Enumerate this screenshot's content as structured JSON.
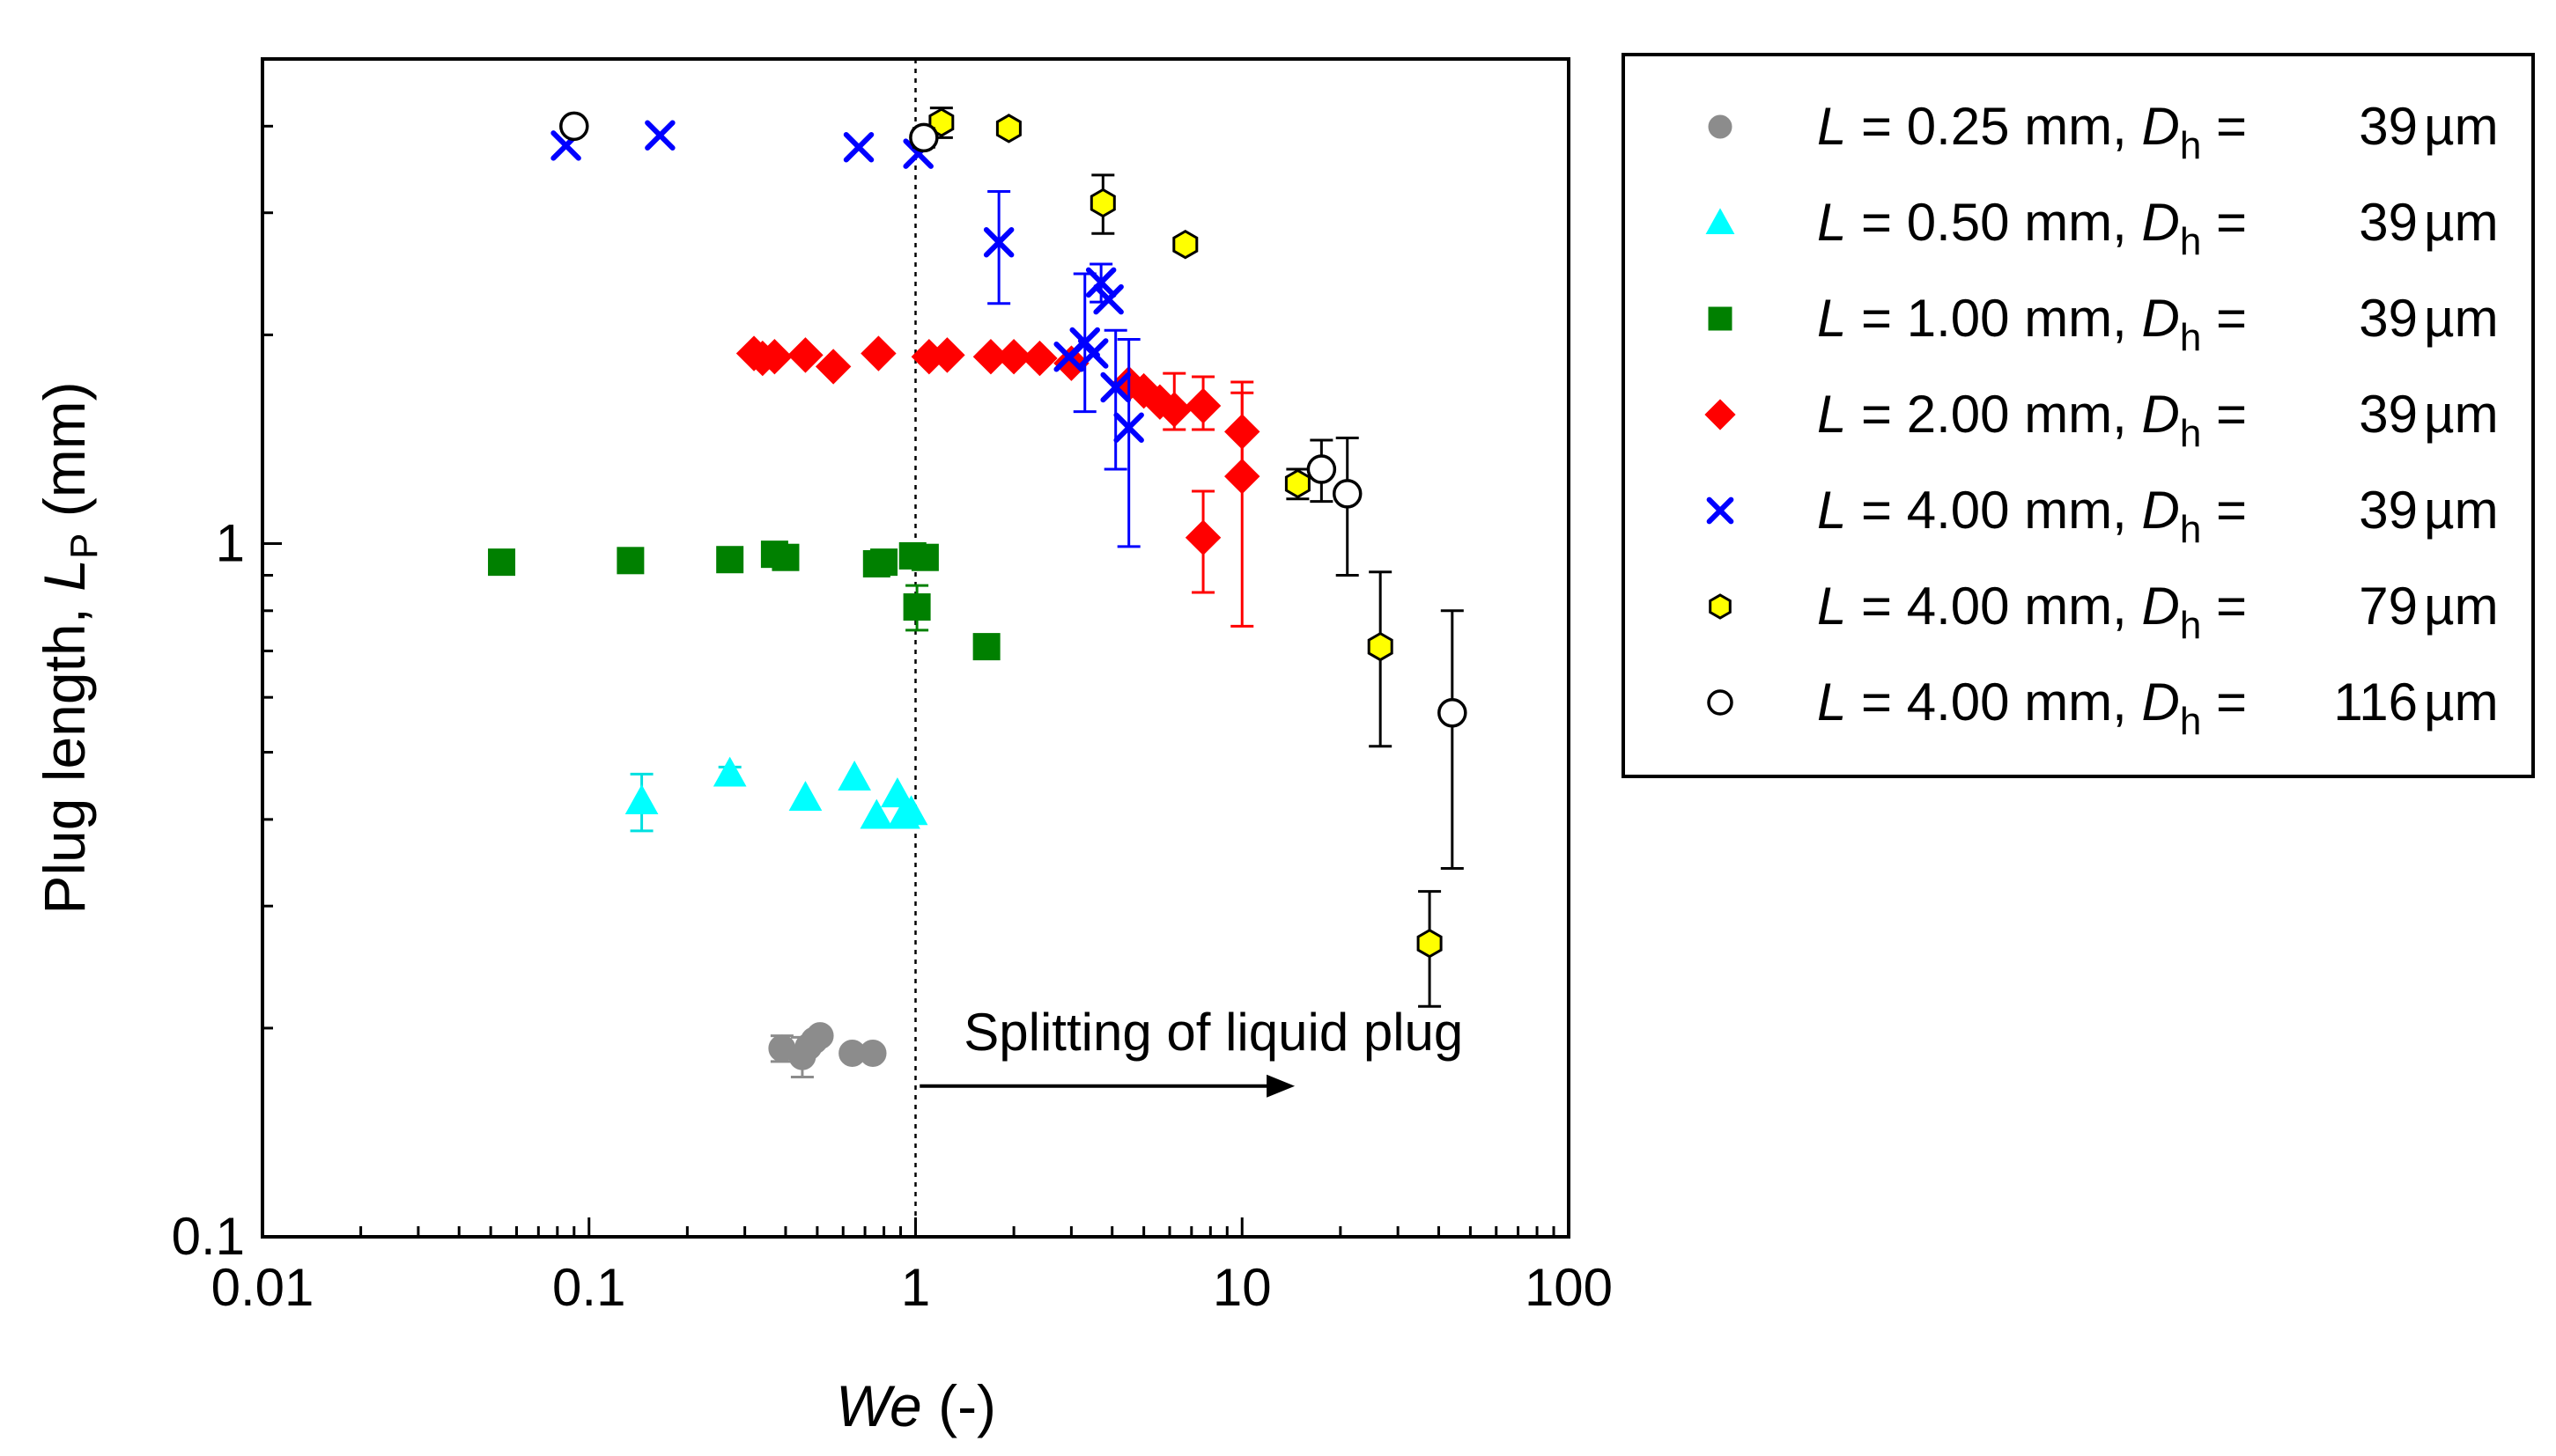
{
  "chart_data": {
    "type": "scatter",
    "title": "",
    "xlabel_italic": "We",
    "xlabel_rest": " (-)",
    "ylabel_prefix": "Plug length, ",
    "ylabel_var": "L",
    "ylabel_sub": "P",
    "ylabel_suffix": " (mm)",
    "xscale": "log",
    "yscale": "log",
    "xlim": [
      0.01,
      100
    ],
    "ylim": [
      0.1,
      5
    ],
    "xticks": [
      {
        "value": 0.01,
        "label": "0.01"
      },
      {
        "value": 0.1,
        "label": "0.1"
      },
      {
        "value": 1,
        "label": "1"
      },
      {
        "value": 10,
        "label": "10"
      },
      {
        "value": 100,
        "label": "100"
      }
    ],
    "yticks": [
      {
        "value": 0.1,
        "label": "0.1"
      },
      {
        "value": 1,
        "label": "1"
      }
    ],
    "grid": false,
    "legend_position": "outside-right-top",
    "reference_line": {
      "x": 1,
      "style": "dotted"
    },
    "annotation": {
      "text": "Splitting of liquid plug",
      "x": 2.6,
      "y": 0.197,
      "arrow_from_x": 1.03,
      "arrow_to_x": 14.5,
      "arrow_y": 0.165
    },
    "series": [
      {
        "name": "L = 0.25 mm, Dh = 39 µm",
        "L_label": "L",
        "eq1": " = 0.25 mm, ",
        "D_label": "D",
        "sub": "h",
        "eq2": " = ",
        "dh_value": "39",
        "unit": " µm",
        "marker": "circle",
        "color": "#8c8c8c",
        "filled": true,
        "points": [
          {
            "x": 0.39,
            "y": 0.187,
            "err": 0.008
          },
          {
            "x": 0.45,
            "y": 0.182,
            "err": 0.012
          },
          {
            "x": 0.47,
            "y": 0.188
          },
          {
            "x": 0.49,
            "y": 0.192
          },
          {
            "x": 0.51,
            "y": 0.195
          },
          {
            "x": 0.64,
            "y": 0.184
          },
          {
            "x": 0.74,
            "y": 0.184
          }
        ]
      },
      {
        "name": "L = 0.50 mm, Dh = 39 µm",
        "L_label": "L",
        "eq1": " = 0.50 mm, ",
        "D_label": "D",
        "sub": "h",
        "eq2": " = ",
        "dh_value": "39",
        "unit": " µm",
        "marker": "triangle",
        "color": "#00ffff",
        "filled": true,
        "points": [
          {
            "x": 0.145,
            "y": 0.425,
            "err": 0.04
          },
          {
            "x": 0.27,
            "y": 0.466,
            "err": 0.01
          },
          {
            "x": 0.46,
            "y": 0.43
          },
          {
            "x": 0.65,
            "y": 0.46
          },
          {
            "x": 0.76,
            "y": 0.405
          },
          {
            "x": 0.88,
            "y": 0.435
          },
          {
            "x": 0.92,
            "y": 0.405
          },
          {
            "x": 0.97,
            "y": 0.41
          }
        ]
      },
      {
        "name": "L = 1.00 mm, Dh = 39 µm",
        "L_label": "L",
        "eq1": " = 1.00 mm, ",
        "D_label": "D",
        "sub": "h",
        "eq2": " = ",
        "dh_value": "39",
        "unit": " µm",
        "marker": "square",
        "color": "#008000",
        "filled": true,
        "points": [
          {
            "x": 0.054,
            "y": 0.94,
            "err": 0.03
          },
          {
            "x": 0.134,
            "y": 0.945
          },
          {
            "x": 0.27,
            "y": 0.948
          },
          {
            "x": 0.37,
            "y": 0.965
          },
          {
            "x": 0.4,
            "y": 0.955
          },
          {
            "x": 0.76,
            "y": 0.935
          },
          {
            "x": 0.8,
            "y": 0.94
          },
          {
            "x": 0.98,
            "y": 0.96
          },
          {
            "x": 1.01,
            "y": 0.81,
            "err": 0.06
          },
          {
            "x": 1.07,
            "y": 0.955
          },
          {
            "x": 1.65,
            "y": 0.71,
            "err": 0.02
          }
        ]
      },
      {
        "name": "L = 2.00 mm, Dh = 39 µm",
        "L_label": "L",
        "eq1": " = 2.00 mm, ",
        "D_label": "D",
        "sub": "h",
        "eq2": " = ",
        "dh_value": "39",
        "unit": " µm",
        "marker": "diamond",
        "color": "#ff0000",
        "filled": true,
        "points": [
          {
            "x": 0.32,
            "y": 1.88
          },
          {
            "x": 0.34,
            "y": 1.85
          },
          {
            "x": 0.37,
            "y": 1.86
          },
          {
            "x": 0.46,
            "y": 1.87
          },
          {
            "x": 0.56,
            "y": 1.8
          },
          {
            "x": 0.77,
            "y": 1.88
          },
          {
            "x": 1.1,
            "y": 1.86
          },
          {
            "x": 1.25,
            "y": 1.87
          },
          {
            "x": 1.7,
            "y": 1.86
          },
          {
            "x": 2.0,
            "y": 1.86
          },
          {
            "x": 2.4,
            "y": 1.85
          },
          {
            "x": 3.0,
            "y": 1.82
          },
          {
            "x": 4.5,
            "y": 1.7
          },
          {
            "x": 5.0,
            "y": 1.66
          },
          {
            "x": 5.6,
            "y": 1.6
          },
          {
            "x": 6.2,
            "y": 1.56,
            "err_up": 0.2,
            "err_down": 0.1
          },
          {
            "x": 7.6,
            "y": 1.58,
            "err_up": 0.16,
            "err_down": 0.12
          },
          {
            "x": 7.6,
            "y": 1.02,
            "err_up": 0.17,
            "err_down": 0.17
          },
          {
            "x": 10.0,
            "y": 1.45,
            "err_up": 0.2,
            "err_down": 0.2
          },
          {
            "x": 10.0,
            "y": 1.25,
            "err_up": 0.46,
            "err_down": 0.49
          }
        ]
      },
      {
        "name": "L = 4.00 mm, Dh = 39 µm",
        "L_label": "L",
        "eq1": " = 4.00 mm, ",
        "D_label": "D",
        "sub": "h",
        "eq2": " = ",
        "dh_value": "39",
        "unit": " µm",
        "marker": "cross",
        "color": "#0000ff",
        "filled": true,
        "points": [
          {
            "x": 0.085,
            "y": 3.75
          },
          {
            "x": 0.165,
            "y": 3.88
          },
          {
            "x": 0.67,
            "y": 3.73
          },
          {
            "x": 1.02,
            "y": 3.65
          },
          {
            "x": 1.8,
            "y": 2.72,
            "err_up": 0.5,
            "err_down": 0.5
          },
          {
            "x": 2.95,
            "y": 1.86
          },
          {
            "x": 3.3,
            "y": 1.95,
            "err_up": 0.5,
            "err_down": 0.4
          },
          {
            "x": 3.5,
            "y": 1.88
          },
          {
            "x": 3.7,
            "y": 2.38,
            "err_up": 0.15,
            "err_down": 0.15
          },
          {
            "x": 3.9,
            "y": 2.25
          },
          {
            "x": 4.1,
            "y": 1.68,
            "err_up": 0.35,
            "err_down": 0.4
          },
          {
            "x": 4.5,
            "y": 1.47,
            "err_up": 0.5,
            "err_down": 0.48
          }
        ]
      },
      {
        "name": "L = 4.00 mm, Dh = 79 µm",
        "L_label": "L",
        "eq1": " = 4.00 mm, ",
        "D_label": "D",
        "sub": "h",
        "eq2": " = ",
        "dh_value": "79",
        "unit": " µm",
        "marker": "hexagon",
        "color": "#ffff00",
        "filled": true,
        "points": [
          {
            "x": 1.2,
            "y": 4.05,
            "err": 0.2
          },
          {
            "x": 1.93,
            "y": 3.97
          },
          {
            "x": 3.75,
            "y": 3.1,
            "err": 0.3
          },
          {
            "x": 6.7,
            "y": 2.7
          },
          {
            "x": 14.8,
            "y": 1.22,
            "err": 0.06
          },
          {
            "x": 26.5,
            "y": 0.71,
            "err": 0.2
          },
          {
            "x": 37.5,
            "y": 0.265,
            "err": 0.05
          }
        ]
      },
      {
        "name": "L = 4.00 mm, Dh = 116 µm",
        "L_label": "L",
        "eq1": " = 4.00 mm, ",
        "D_label": "D",
        "sub": "h",
        "eq2": " = ",
        "dh_value": "116",
        "unit": " µm",
        "marker": "circle",
        "color": "#000000",
        "filled": false,
        "points": [
          {
            "x": 0.09,
            "y": 4.0
          },
          {
            "x": 1.06,
            "y": 3.85,
            "err": 0.12
          },
          {
            "x": 17.5,
            "y": 1.28,
            "err": 0.13
          },
          {
            "x": 21.0,
            "y": 1.18,
            "err_up": 0.24,
            "err_down": 0.28
          },
          {
            "x": 44.0,
            "y": 0.57,
            "err_up": 0.23,
            "err_down": 0.23
          }
        ]
      }
    ]
  }
}
